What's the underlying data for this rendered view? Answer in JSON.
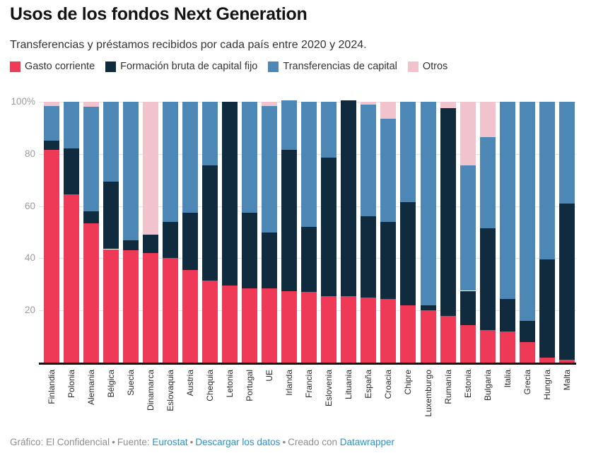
{
  "header": {
    "title": "Usos de los fondos Next Generation",
    "subtitle": "Transferencias y préstamos recibidos por cada país entre 2020 y 2024."
  },
  "chart_data": {
    "type": "bar",
    "stacked": true,
    "unit": "%",
    "title": "Usos de los fondos Next Generation",
    "subtitle": "Transferencias y préstamos recibidos por cada país entre 2020 y 2024.",
    "legend_position": "top",
    "grid": true,
    "ylim": [
      0,
      100
    ],
    "yticks": [
      20,
      40,
      60,
      80,
      100
    ],
    "ytick_labels": [
      "20",
      "40",
      "60",
      "80",
      "100%"
    ],
    "categories": [
      "Finlandia",
      "Polonia",
      "Alemania",
      "Bélgica",
      "Suecia",
      "Dinamarca",
      "Eslovaquia",
      "Austria",
      "Chequia",
      "Letonia",
      "Portugal",
      "UE",
      "Irlanda",
      "Francia",
      "Eslovenia",
      "Lituania",
      "España",
      "Croacia",
      "Chipre",
      "Luxemburgo",
      "Rumanía",
      "Estonia",
      "Bulgaria",
      "Italia",
      "Grecia",
      "Hungría",
      "Malta"
    ],
    "series": [
      {
        "name": "Gasto corriente",
        "color": "#EF3A57",
        "values": [
          81.5,
          64.5,
          53.5,
          43.5,
          43,
          42,
          40,
          35.5,
          31.5,
          29.5,
          28.5,
          28.5,
          27.5,
          27,
          25.5,
          25.5,
          25,
          24.5,
          22,
          20,
          18,
          14.5,
          12.5,
          12,
          8,
          2,
          1
        ]
      },
      {
        "name": "Formación bruta de capital fijo",
        "color": "#0F2B3D",
        "values": [
          3.5,
          17.5,
          4.5,
          26,
          4,
          7,
          14,
          22,
          44,
          70.5,
          29,
          21.5,
          54,
          25,
          53,
          75,
          31,
          29.5,
          39.5,
          2,
          79.5,
          13,
          39,
          12.5,
          8,
          37.5,
          60
        ]
      },
      {
        "name": "Transferencias de capital",
        "color": "#4D87B6",
        "values": [
          13.5,
          18,
          40,
          30.5,
          53,
          0,
          46,
          42.5,
          24.5,
          0,
          42.5,
          48.5,
          19,
          48,
          21.5,
          0,
          43,
          39.5,
          38.5,
          78,
          0,
          48,
          35,
          75.5,
          84,
          60.5,
          39
        ]
      },
      {
        "name": "Otros",
        "color": "#F0C3CD",
        "values": [
          1.5,
          0,
          2,
          0,
          0,
          51,
          0,
          0,
          0,
          0,
          0,
          1.5,
          0,
          0,
          0,
          0,
          1,
          6.5,
          0,
          0,
          2.5,
          24.5,
          13.5,
          0,
          0,
          0,
          0
        ]
      }
    ]
  },
  "footer": {
    "credit": "Gráfico: El Confidencial",
    "sep": "•",
    "source_label": "Fuente:",
    "source_link": "Eurostat",
    "download_link": "Descargar los datos",
    "created_label": "Creado con",
    "created_link": "Datawrapper"
  }
}
